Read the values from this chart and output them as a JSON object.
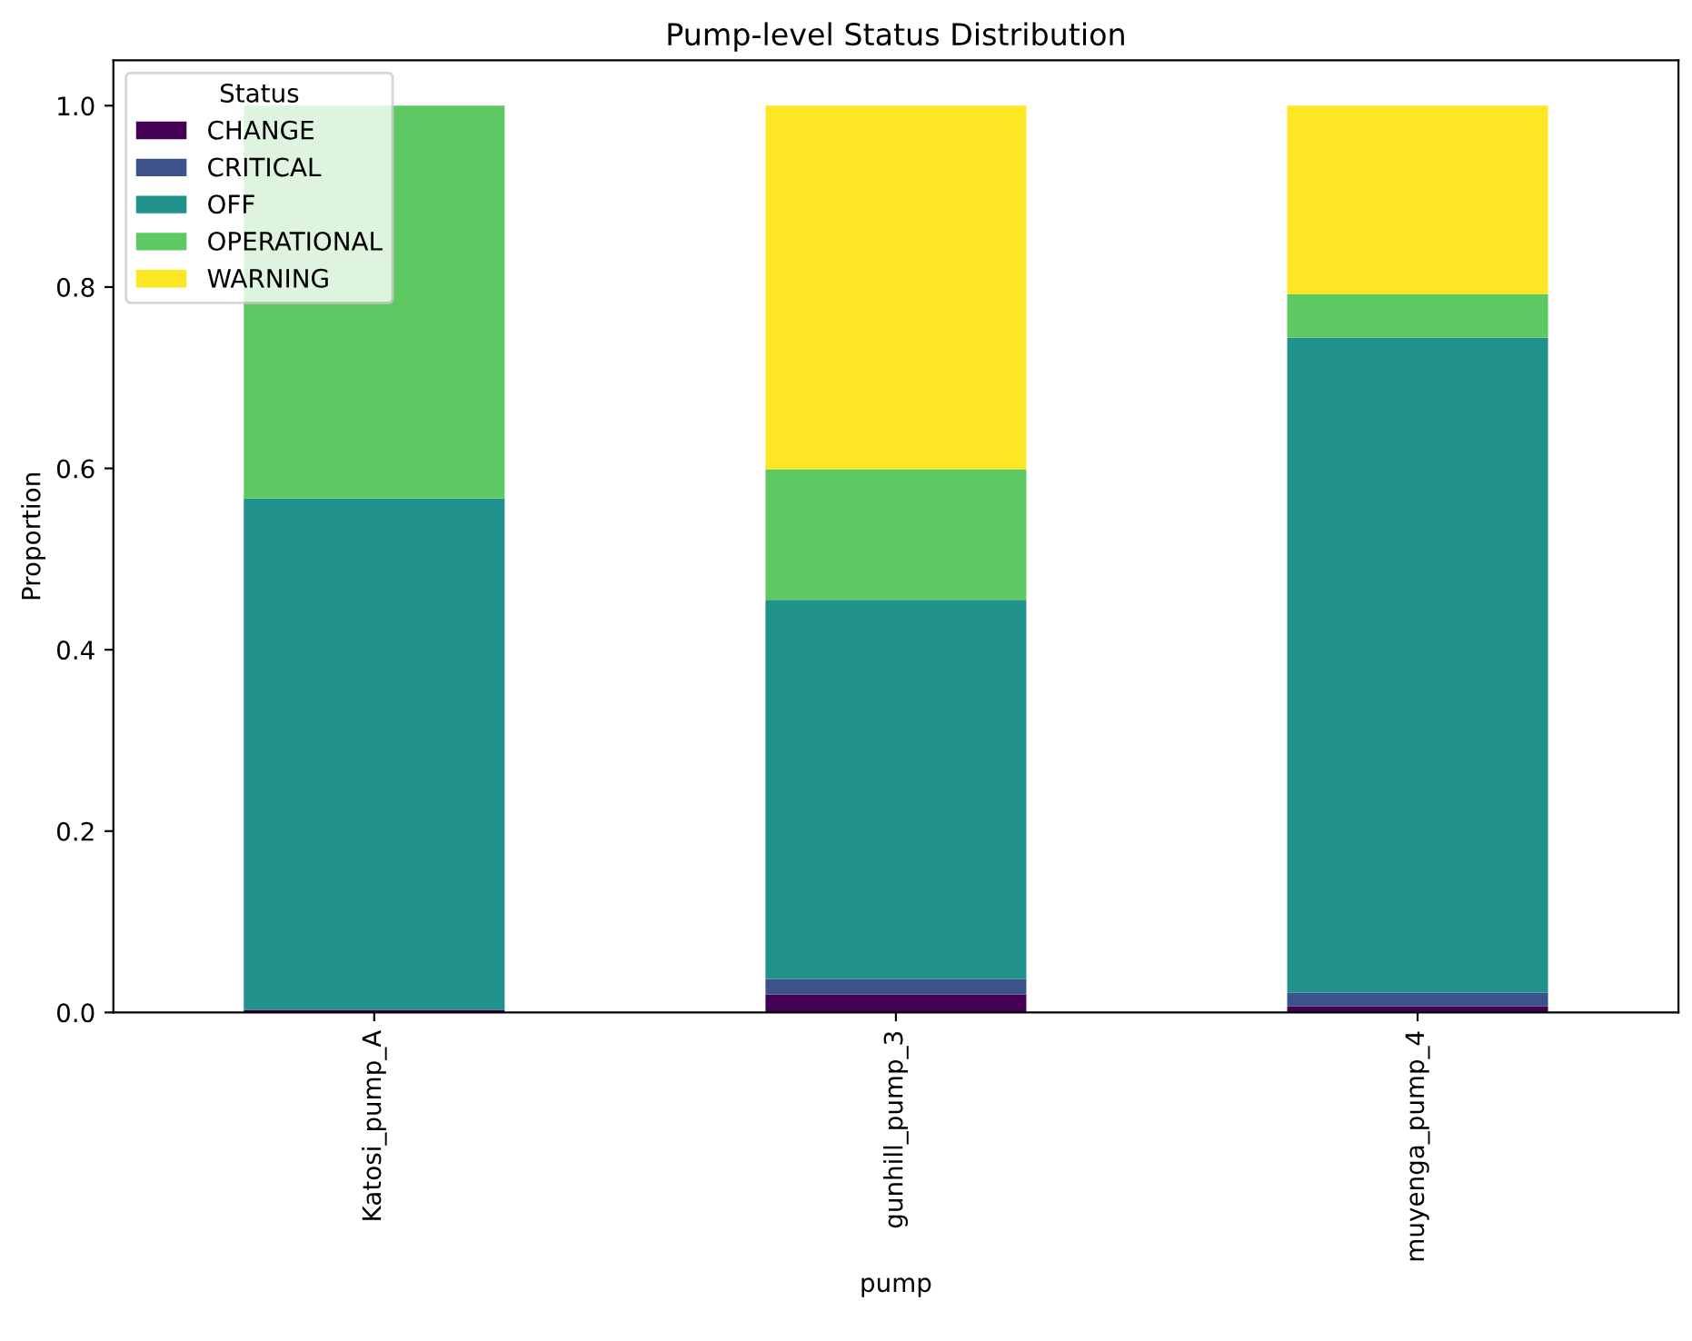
{
  "chart_data": {
    "type": "bar",
    "title": "Pump-level Status Distribution",
    "xlabel": "pump",
    "ylabel": "Proportion",
    "legend_title": "Status",
    "categories": [
      "Katosi_pump_A",
      "gunhill_pump_3",
      "muyenga_pump_4"
    ],
    "stacked": true,
    "legend": "top left",
    "grid": false,
    "ylim": [
      0,
      1.05
    ],
    "yticks": [
      {
        "value": 0,
        "label": "0.0"
      },
      {
        "value": 0.2,
        "label": "0.2"
      },
      {
        "value": 0.4,
        "label": "0.4"
      },
      {
        "value": 0.6,
        "label": "0.6"
      },
      {
        "value": 0.8,
        "label": "0.8"
      },
      {
        "value": 1.0,
        "label": "1.0"
      }
    ],
    "series": [
      {
        "name": "CHANGE",
        "color": "#440154",
        "values": [
          0.003,
          0.02,
          0.007
        ]
      },
      {
        "name": "CRITICAL",
        "color": "#3b528b",
        "values": [
          0,
          0.017,
          0.015
        ]
      },
      {
        "name": "OFF",
        "color": "#21918c",
        "values": [
          0.564,
          0.418,
          0.722
        ]
      },
      {
        "name": "OPERATIONAL",
        "color": "#5ec962",
        "values": [
          0.433,
          0.144,
          0.048
        ]
      },
      {
        "name": "WARNING",
        "color": "#fde725",
        "values": [
          0,
          0.401,
          0.208
        ]
      }
    ]
  }
}
